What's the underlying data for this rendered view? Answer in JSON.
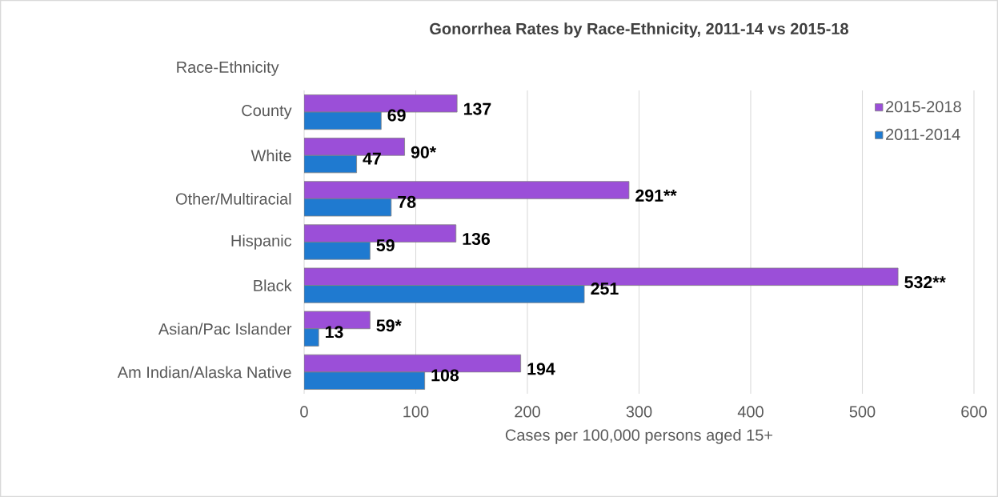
{
  "chart_data": {
    "type": "bar",
    "orientation": "horizontal",
    "title": "Gonorrhea Rates by Race-Ethnicity, 2011-14 vs 2015-18",
    "ylabel": "Race-Ethnicity",
    "xlabel": "Cases per 100,000 persons aged 15+",
    "categories": [
      "County",
      "White",
      "Other/Multiracial",
      "Hispanic",
      "Black",
      "Asian/Pac Islander",
      "Am Indian/Alaska Native"
    ],
    "series": [
      {
        "name": "2015-2018",
        "color": "#9b4fd8",
        "values": [
          137,
          90,
          291,
          136,
          532,
          59,
          194
        ],
        "value_labels": [
          "137",
          "90*",
          "291**",
          "136",
          "532**",
          "59*",
          "194"
        ]
      },
      {
        "name": "2011-2014",
        "color": "#1f7ad0",
        "values": [
          69,
          47,
          78,
          59,
          251,
          13,
          108
        ],
        "value_labels": [
          "69",
          "47",
          "78",
          "59",
          "251",
          "13",
          "108"
        ]
      }
    ],
    "xlim": [
      0,
      600
    ],
    "xticks": [
      0,
      100,
      200,
      300,
      400,
      500,
      600
    ],
    "grid": "x",
    "legend": "top right"
  }
}
